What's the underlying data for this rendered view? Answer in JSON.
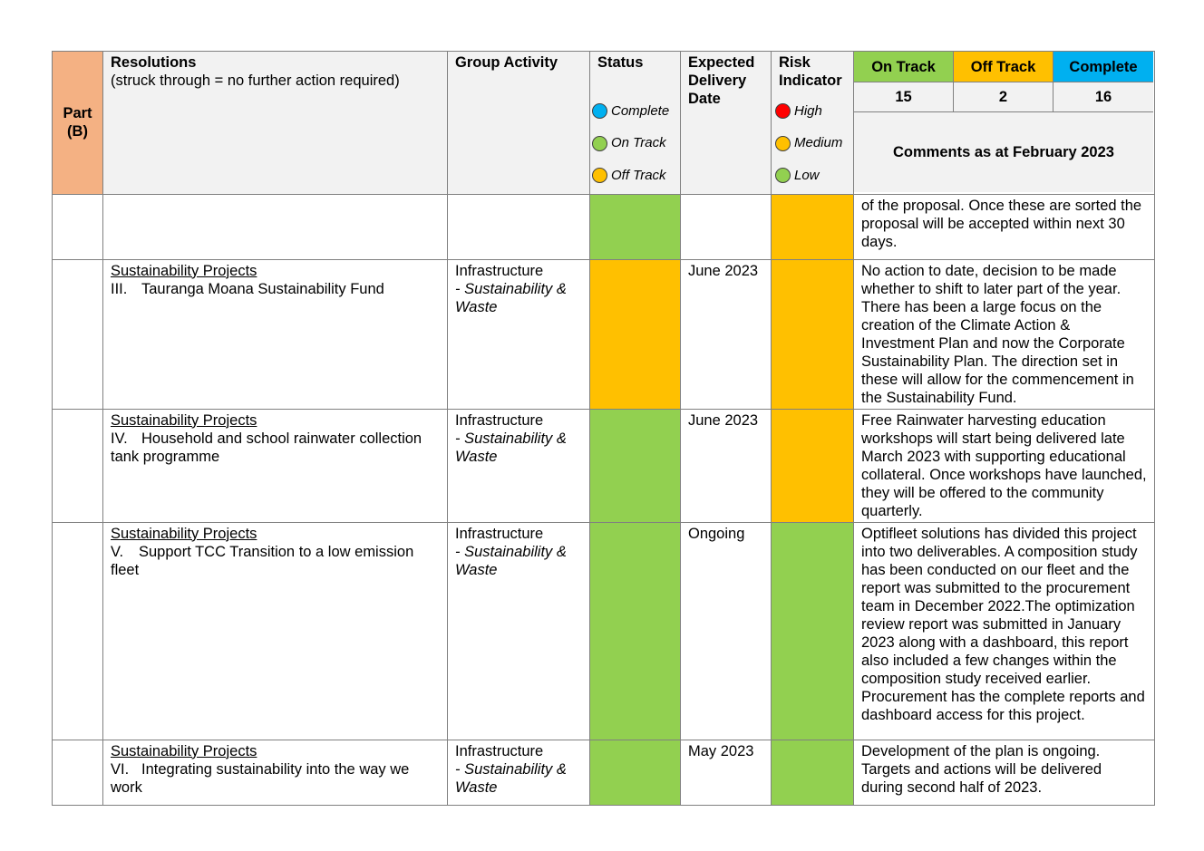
{
  "header": {
    "part": "Part (B)",
    "resolutions_title": "Resolutions",
    "resolutions_note": "(struck through = no further action required)",
    "group_activity": "Group Activity",
    "status": "Status",
    "expected_delivery": "Expected Delivery Date",
    "risk_indicator": "Risk Indicator",
    "status_legend": [
      {
        "label": "Complete",
        "color": "#00b0f0"
      },
      {
        "label": "On Track",
        "color": "#92d050"
      },
      {
        "label": "Off Track",
        "color": "#ffc000"
      }
    ],
    "risk_legend": [
      {
        "label": "High",
        "color": "#ff0000"
      },
      {
        "label": "Medium",
        "color": "#ffc000"
      },
      {
        "label": "Low",
        "color": "#92d050"
      }
    ],
    "summary": {
      "on_track_label": "On Track",
      "on_track_color": "#92d050",
      "on_track_count": "15",
      "off_track_label": "Off Track",
      "off_track_color": "#ffc000",
      "off_track_count": "2",
      "complete_label": "Complete",
      "complete_color": "#00b0f0",
      "complete_count": "16",
      "comments_title": "Comments as at February 2023"
    }
  },
  "rows": [
    {
      "project": "",
      "numeral": "",
      "resolution": "",
      "group_main": "",
      "group_sub": "",
      "status_color": "#92d050",
      "delivery": "",
      "risk_color": "#ffc000",
      "comment": "of the proposal. Once these are sorted the proposal will be accepted within next 30 days."
    },
    {
      "project": "Sustainability Projects",
      "numeral": "III.",
      "resolution": "Tauranga Moana Sustainability Fund",
      "group_main": "Infrastructure",
      "group_sub": "- Sustainability & Waste",
      "status_color": "#ffc000",
      "delivery": "June 2023",
      "risk_color": "#ffc000",
      "comment": "No action to date, decision to be made whether to shift to later part of the year. There has been a large focus on the creation of the Climate Action & Investment Plan and now the Corporate Sustainability Plan. The direction set in these will allow for the commencement in the Sustainability Fund."
    },
    {
      "project": "Sustainability Projects",
      "numeral": "IV.",
      "resolution": "Household and school rainwater collection tank programme",
      "group_main": "Infrastructure",
      "group_sub": "- Sustainability & Waste",
      "status_color": "#92d050",
      "delivery": "June 2023",
      "risk_color": "#ffc000",
      "comment": "Free Rainwater harvesting education workshops will start being delivered late March 2023 with supporting educational collateral. Once workshops have launched, they will be offered to the community quarterly."
    },
    {
      "project": "Sustainability Projects",
      "numeral": "V.",
      "resolution": "Support TCC Transition to a low emission fleet",
      "group_main": "Infrastructure",
      "group_sub": "- Sustainability & Waste",
      "status_color": "#92d050",
      "delivery": "Ongoing",
      "risk_color": "#92d050",
      "comment": "Optifleet solutions has divided this project into two deliverables. A composition study has been conducted on our fleet and the report was submitted to the procurement team in December 2022.The optimization review report was submitted in January 2023 along with a dashboard, this report also included a few changes within the composition study received earlier. Procurement has the complete reports and dashboard access for this project."
    },
    {
      "project": "Sustainability Projects",
      "numeral": "VI.",
      "resolution": "Integrating sustainability into the way we work",
      "group_main": "Infrastructure",
      "group_sub": "- Sustainability & Waste",
      "status_color": "#92d050",
      "delivery": "May 2023",
      "risk_color": "#92d050",
      "comment": "Development of the plan is ongoing. Targets and actions will be delivered during second half of 2023."
    }
  ]
}
